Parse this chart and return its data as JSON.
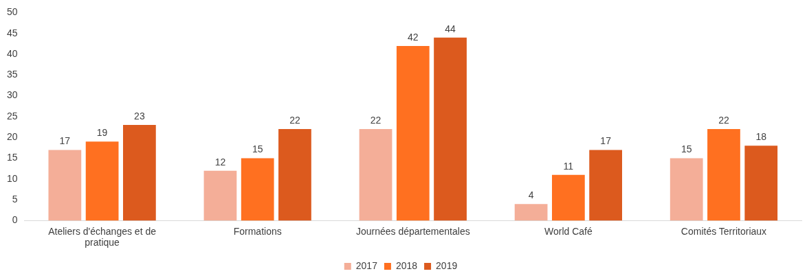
{
  "chart_data": {
    "type": "bar",
    "categories": [
      "Ateliers d'échanges et de pratique",
      "Formations",
      "Journées départementales",
      "World Café",
      "Comités Territoriaux"
    ],
    "series": [
      {
        "name": "2017",
        "color": "#f4ae98",
        "values": [
          17,
          12,
          22,
          4,
          15
        ]
      },
      {
        "name": "2018",
        "color": "#ff7020",
        "values": [
          19,
          15,
          42,
          11,
          22
        ]
      },
      {
        "name": "2019",
        "color": "#dc5a1e",
        "values": [
          23,
          22,
          44,
          17,
          18
        ]
      }
    ],
    "ylim": [
      0,
      50
    ],
    "yticks": [
      0,
      5,
      10,
      15,
      20,
      25,
      30,
      35,
      40,
      45,
      50
    ],
    "grid": false,
    "legend": "bottom",
    "data_labels": true
  }
}
